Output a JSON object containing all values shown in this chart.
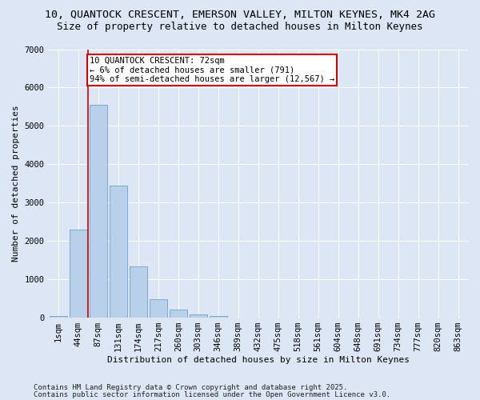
{
  "title1": "10, QUANTOCK CRESCENT, EMERSON VALLEY, MILTON KEYNES, MK4 2AG",
  "title2": "Size of property relative to detached houses in Milton Keynes",
  "xlabel": "Distribution of detached houses by size in Milton Keynes",
  "ylabel": "Number of detached properties",
  "categories": [
    "1sqm",
    "44sqm",
    "87sqm",
    "131sqm",
    "174sqm",
    "217sqm",
    "260sqm",
    "303sqm",
    "346sqm",
    "389sqm",
    "432sqm",
    "475sqm",
    "518sqm",
    "561sqm",
    "604sqm",
    "648sqm",
    "691sqm",
    "734sqm",
    "777sqm",
    "820sqm",
    "863sqm"
  ],
  "values": [
    50,
    2300,
    5560,
    3450,
    1330,
    480,
    200,
    90,
    40,
    0,
    0,
    0,
    0,
    0,
    0,
    0,
    0,
    0,
    0,
    0,
    0
  ],
  "bar_color": "#b8d0ea",
  "bar_edge_color": "#7aa8cc",
  "vline_x": 1.5,
  "vline_color": "#cc0000",
  "annotation_text": "10 QUANTOCK CRESCENT: 72sqm\n← 6% of detached houses are smaller (791)\n94% of semi-detached houses are larger (12,567) →",
  "annotation_box_color": "#ffffff",
  "annotation_box_edge": "#cc0000",
  "ylim": [
    0,
    7000
  ],
  "yticks": [
    0,
    1000,
    2000,
    3000,
    4000,
    5000,
    6000,
    7000
  ],
  "fig_bg_color": "#dce6f5",
  "ax_bg_color": "#dce6f5",
  "footer1": "Contains HM Land Registry data © Crown copyright and database right 2025.",
  "footer2": "Contains public sector information licensed under the Open Government Licence v3.0.",
  "title1_fontsize": 9.5,
  "title2_fontsize": 9,
  "axis_label_fontsize": 8,
  "tick_fontsize": 7.5,
  "annotation_fontsize": 7.5,
  "footer_fontsize": 6.5
}
